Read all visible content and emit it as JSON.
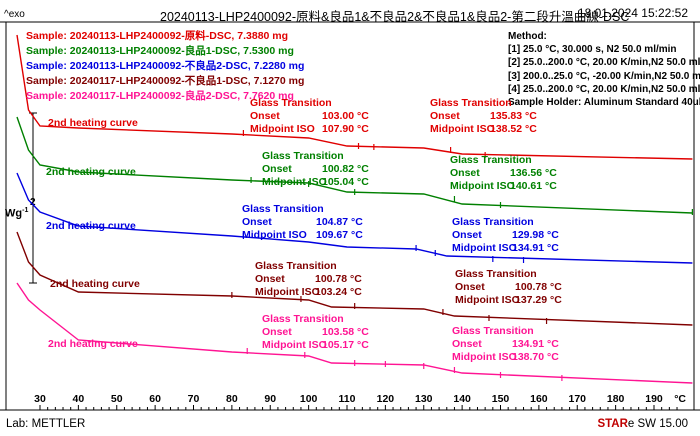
{
  "header": {
    "exo": "^exo",
    "title": "20240113-LHP2400092-原料&良品1&不良品2&不良品1&良品2-第二段升溫曲線-DSC",
    "date": "18.01.2024 15:22:52"
  },
  "footer": {
    "lab": "Lab: METTLER",
    "star": "STAR",
    "sw": "e SW 15.00"
  },
  "ylabel": "Wg^-1",
  "scale_bar": "2",
  "legend": [
    {
      "text": "Sample: 20240113-LHP2400092-原料-DSC, 7.3880 mg",
      "color": "#e00000"
    },
    {
      "text": "Sample: 20240113-LHP2400092-良品1-DSC, 7.5300 mg",
      "color": "#008000"
    },
    {
      "text": "Sample: 20240113-LHP2400092-不良品2-DSC, 7.2280 mg",
      "color": "#0000e0"
    },
    {
      "text": "Sample: 20240117-LHP2400092-不良品1-DSC, 7.1270 mg",
      "color": "#800000"
    },
    {
      "text": "Sample: 20240117-LHP2400092-良品2-DSC, 7.7620 mg",
      "color": "#ff1493"
    }
  ],
  "method": {
    "title": "Method:",
    "steps": [
      "[1] 25.0 °C, 30.000 s,  N2 50.0 ml/min",
      "[2] 25.0..200.0 °C, 20.00 K/min,N2 50.0 ml/min",
      "[3] 200.0..25.0 °C, -20.00 K/min,N2 50.0 ml/min",
      "[4] 25.0..200.0 °C, 20.00 K/min,N2 50.0 ml/min"
    ],
    "holder": "Sample Holder: Aluminum Standard 40ul"
  },
  "curve_label": "2nd heating curve",
  "gt_labels": {
    "title": "Glass Transition",
    "onset": "Onset",
    "mid": "Midpoint ISO"
  },
  "colors": {
    "red": "#e00000",
    "green": "#008000",
    "blue": "#0000e0",
    "brown": "#800000",
    "pink": "#ff1493"
  },
  "chart_data": {
    "type": "line",
    "xlabel": "°C",
    "xlim": [
      24,
      200
    ],
    "x_ticks": [
      "30",
      "40",
      "50",
      "60",
      "70",
      "80",
      "90",
      "100",
      "110",
      "120",
      "130",
      "140",
      "150",
      "160",
      "170",
      "180",
      "190"
    ],
    "series": [
      {
        "name": "Sample: 20240113-LHP2400092-原料-DSC, 7.3880 mg",
        "transitions": [
          {
            "onset": "103.00 °C",
            "midpoint": "107.90 °C"
          },
          {
            "onset": "135.83 °C",
            "midpoint": "138.52 °C"
          }
        ]
      },
      {
        "name": "Sample: 20240113-LHP2400092-良品1-DSC, 7.5300 mg",
        "transitions": [
          {
            "onset": "100.82 °C",
            "midpoint": "105.04 °C"
          },
          {
            "onset": "136.56 °C",
            "midpoint": "140.61 °C"
          }
        ]
      },
      {
        "name": "Sample: 20240113-LHP2400092-不良品2-DSC, 7.2280 mg",
        "transitions": [
          {
            "onset": "104.87 °C",
            "midpoint": "109.67 °C"
          },
          {
            "onset": "129.98 °C",
            "midpoint": "134.91 °C"
          }
        ]
      },
      {
        "name": "Sample: 20240117-LHP2400092-不良品1-DSC, 7.1270 mg",
        "transitions": [
          {
            "onset": "100.78 °C",
            "midpoint": "103.24 °C"
          },
          {
            "onset": "132.94 °C",
            "midpoint": "137.29 °C"
          }
        ]
      },
      {
        "name": "Sample: 20240117-LHP2400092-良品2-DSC, 7.7620 mg",
        "transitions": [
          {
            "onset": "103.58 °C",
            "midpoint": "105.17 °C"
          },
          {
            "onset": "134.91 °C",
            "midpoint": "138.70 °C"
          }
        ]
      }
    ]
  }
}
